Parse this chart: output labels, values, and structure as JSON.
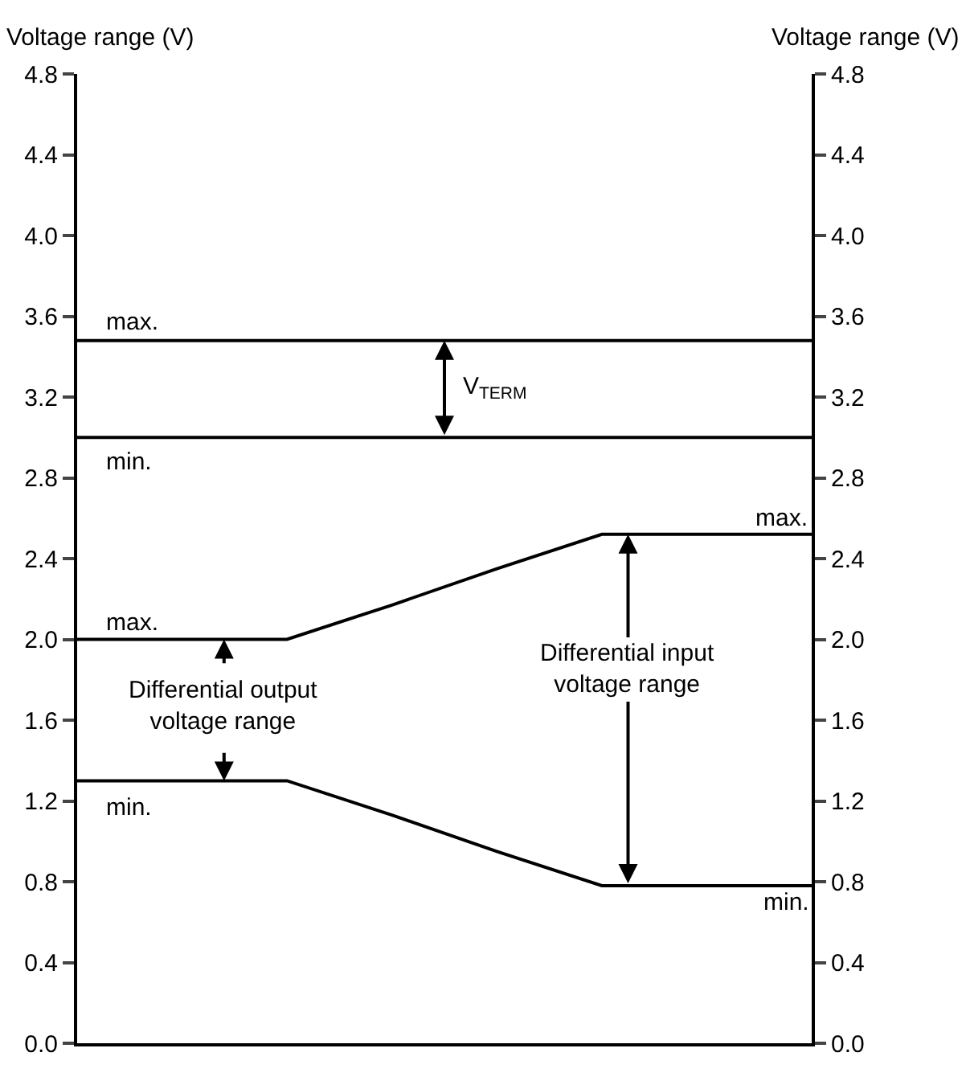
{
  "chart_data": {
    "type": "line",
    "categories": [
      null,
      null,
      null,
      null,
      null,
      null,
      null,
      null
    ],
    "series": [
      {
        "color": "#000000",
        "values": [
          3.48,
          3.48,
          3.48,
          3.48,
          3.48,
          3.48,
          3.48,
          3.48
        ]
      },
      {
        "color": "#000000",
        "values": [
          3.0,
          3.0,
          3.0,
          3.0,
          3.0,
          3.0,
          3.0,
          3.0
        ]
      },
      {
        "color": "#000000",
        "values": [
          2.0,
          2.0,
          2.0,
          2.17,
          2.35,
          2.52,
          2.52,
          2.52
        ]
      },
      {
        "color": "#000000",
        "values": [
          1.3,
          1.3,
          1.3,
          1.13,
          0.95,
          0.78,
          0.78,
          0.78
        ]
      },
      {
        "color": "#000000",
        "axis": "y2",
        "values": [
          null,
          null,
          null,
          null,
          null,
          null,
          null,
          null
        ]
      }
    ],
    "ylabel": "Voltage range (V)",
    "y2label": "Voltage range (V)",
    "ylim": [
      0,
      4.8
    ],
    "y2lim": [
      0,
      4.8
    ],
    "yticks": [
      {
        "value": 0,
        "label": "0.0"
      },
      {
        "value": 0.4,
        "label": "0.4"
      },
      {
        "value": 0.8,
        "label": "0.8"
      },
      {
        "value": 1.2,
        "label": "1.2"
      },
      {
        "value": 1.6,
        "label": "1.6"
      },
      {
        "value": 2.0,
        "label": "2.0"
      },
      {
        "value": 2.4,
        "label": "2.4"
      },
      {
        "value": 2.8,
        "label": "2.8"
      },
      {
        "value": 3.2,
        "label": "3.2"
      },
      {
        "value": 3.6,
        "label": "3.6"
      },
      {
        "value": 4.0,
        "label": "4.0"
      },
      {
        "value": 4.4,
        "label": "4.4"
      },
      {
        "value": 4.8,
        "label": "4.8"
      }
    ],
    "y2ticks": [
      {
        "value": 0,
        "label": "0.0"
      },
      {
        "value": 0.4,
        "label": "0.4"
      },
      {
        "value": 0.8,
        "label": "0.8"
      },
      {
        "value": 1.2,
        "label": "1.2"
      },
      {
        "value": 1.6,
        "label": "1.6"
      },
      {
        "value": 2.0,
        "label": "2.0"
      },
      {
        "value": 2.4,
        "label": "2.4"
      },
      {
        "value": 2.8,
        "label": "2.8"
      },
      {
        "value": 3.2,
        "label": "3.2"
      },
      {
        "value": 3.6,
        "label": "3.6"
      },
      {
        "value": 4.0,
        "label": "4.0"
      },
      {
        "value": 4.4,
        "label": "4.4"
      },
      {
        "value": 4.8,
        "label": "4.8"
      }
    ],
    "tick_labels": "y",
    "annotations": [
      "max.",
      "min.",
      "max.",
      "min.",
      "max.",
      "min.",
      "V$_{TERM}$",
      "Differential output\nvoltage range",
      "Differential input\nvoltage range"
    ],
    "legend": false,
    "marker": "none",
    "line_style": "solid"
  }
}
